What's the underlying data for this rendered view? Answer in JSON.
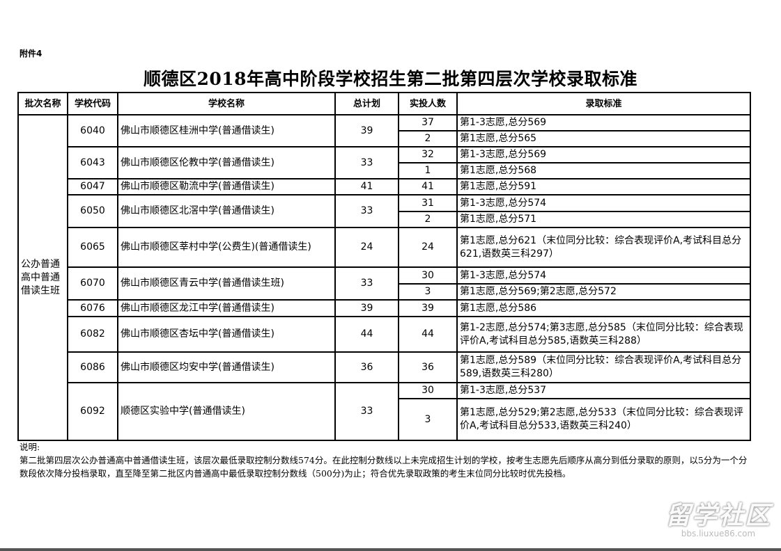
{
  "attachment_label": "附件4",
  "title": "顺德区2018年高中阶段学校招生第二批第四层次学校录取标准",
  "table": {
    "headers": [
      "批次名称",
      "学校代码",
      "学校名称",
      "总计划",
      "实投人数",
      "录取标准"
    ],
    "batch_name": "公办普通高中普通借读生班",
    "schools": [
      {
        "code": "6040",
        "name": "佛山市顺德区桂洲中学(普通借读生)",
        "plan": "39",
        "rows": [
          {
            "count": "37",
            "standard": "第1-3志愿,总分569"
          },
          {
            "count": "2",
            "standard": "第1志愿,总分565"
          }
        ]
      },
      {
        "code": "6043",
        "name": "佛山市顺德区伦教中学(普通借读生)",
        "plan": "33",
        "rows": [
          {
            "count": "32",
            "standard": "第1-3志愿,总分569"
          },
          {
            "count": "1",
            "standard": "第1志愿,总分568"
          }
        ]
      },
      {
        "code": "6047",
        "name": "佛山市顺德区勒流中学(普通借读生)",
        "plan": "41",
        "rows": [
          {
            "count": "41",
            "standard": "第1志愿,总分591"
          }
        ]
      },
      {
        "code": "6050",
        "name": "佛山市顺德区北滘中学(普通借读生)",
        "plan": "33",
        "rows": [
          {
            "count": "31",
            "standard": "第1-3志愿,总分574"
          },
          {
            "count": "2",
            "standard": "第1志愿,总分571"
          }
        ]
      },
      {
        "code": "6065",
        "name": "佛山市顺德区莘村中学(公费生)(普通借读生)",
        "plan": "24",
        "rows": [
          {
            "count": "24",
            "standard": "第1志愿,总分621（末位同分比较：综合表现评价A,考试科目总分621,语数英三科297）"
          }
        ]
      },
      {
        "code": "6070",
        "name": "佛山市顺德区青云中学(普通借读生班)",
        "plan": "33",
        "rows": [
          {
            "count": "30",
            "standard": "第1-3志愿,总分574"
          },
          {
            "count": "3",
            "standard": "第1志愿,总分569;第2志愿,总分572"
          }
        ]
      },
      {
        "code": "6076",
        "name": "佛山市顺德区龙江中学(普通借读生)",
        "plan": "39",
        "rows": [
          {
            "count": "39",
            "standard": "第1志愿,总分586"
          }
        ]
      },
      {
        "code": "6082",
        "name": "佛山市顺德区杏坛中学(普通借读生)",
        "plan": "44",
        "rows": [
          {
            "count": "44",
            "standard": "第1-2志愿,总分574;第3志愿,总分585（末位同分比较：综合表现评价A,考试科目总分585,语数英三科288）"
          }
        ]
      },
      {
        "code": "6086",
        "name": "佛山市顺德区均安中学(普通借读生)",
        "plan": "36",
        "rows": [
          {
            "count": "36",
            "standard": "第1志愿,总分589（末位同分比较：综合表现评价A,考试科目总分589,语数英三科280）"
          }
        ]
      },
      {
        "code": "6092",
        "name": "顺德区实验中学(普通借读生)",
        "plan": "33",
        "rows": [
          {
            "count": "30",
            "standard": "第1-3志愿,总分537"
          },
          {
            "count": "3",
            "standard": "第1志愿,总分529;第2志愿,总分533（末位同分比较：综合表现评价A,考试科目总分533,语数英三科240）"
          }
        ]
      }
    ]
  },
  "notes": {
    "heading": "说明:",
    "body": "第二批第四层次公办普通高中普通借读生班，该层次最低录取控制分数线574分。在此控制分数线以上未完成招生计划的学校，按考生志愿先后顺序从高分到低分录取的原则，以5分为一个分数段依次降分投档录取，直至降至第二批区内普通高中最低录取控制分数线（500分)为止；符合优先录取政策的考生末位同分比较时优先投档。"
  },
  "watermark": {
    "logo_text": "留学社区",
    "url": "bbs.liuxue86.com"
  }
}
